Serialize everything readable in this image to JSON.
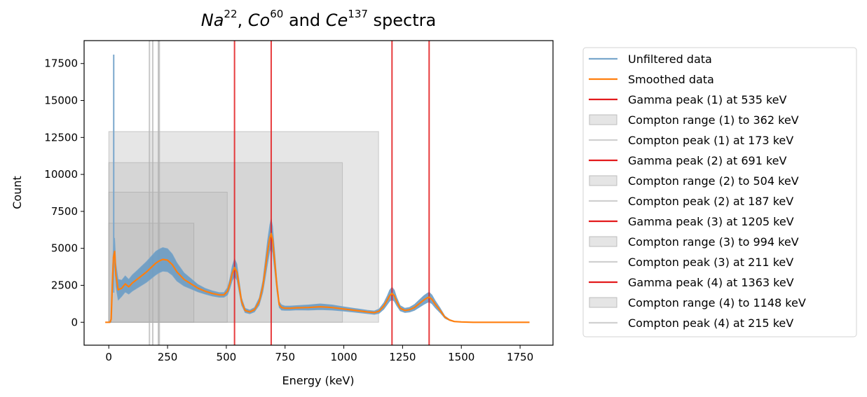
{
  "chart_data": {
    "type": "line",
    "title": {
      "el1": "Na",
      "sup1": "22",
      "sep1": ", ",
      "el2": "Co",
      "sup2": "60",
      "sep2": " and ",
      "el3": "Ce",
      "sup3": "137",
      "tail": " spectra"
    },
    "xlabel": "Energy (keV)",
    "ylabel": "Count",
    "xlim": [
      -105,
      1890
    ],
    "ylim": [
      -1550,
      19050
    ],
    "xticks": [
      0,
      250,
      500,
      750,
      1000,
      1250,
      1500,
      1750
    ],
    "yticks": [
      0,
      2500,
      5000,
      7500,
      10000,
      12500,
      15000,
      17500
    ],
    "grid": false,
    "legend_position": "outside-right",
    "colors": {
      "unfiltered": "#7aa7cc",
      "unfiltered_band": "#6a9bc3",
      "smoothed": "#ff7f0e",
      "gamma": "#e31a1c",
      "compton_range": "#bdbdbd",
      "compton_peak": "#b0b0b0"
    },
    "series": [
      {
        "name": "Smoothed data",
        "x": [
          -15,
          5,
          10,
          15,
          20,
          25,
          30,
          40,
          55,
          70,
          85,
          100,
          120,
          140,
          160,
          180,
          200,
          215,
          230,
          250,
          270,
          290,
          320,
          350,
          380,
          410,
          440,
          470,
          490,
          505,
          515,
          525,
          535,
          545,
          555,
          565,
          580,
          600,
          620,
          640,
          655,
          665,
          675,
          685,
          691,
          697,
          705,
          715,
          725,
          735,
          750,
          770,
          800,
          850,
          900,
          950,
          1000,
          1050,
          1100,
          1130,
          1150,
          1170,
          1185,
          1195,
          1205,
          1215,
          1225,
          1240,
          1260,
          1280,
          1300,
          1320,
          1340,
          1355,
          1363,
          1375,
          1390,
          1410,
          1430,
          1450,
          1470,
          1500,
          1550,
          1600,
          1650,
          1700,
          1750,
          1790
        ],
        "y": [
          0,
          0,
          200,
          2500,
          4400,
          4800,
          3200,
          2200,
          2300,
          2600,
          2400,
          2650,
          2900,
          3150,
          3400,
          3700,
          4000,
          4150,
          4250,
          4200,
          3900,
          3400,
          2900,
          2600,
          2300,
          2100,
          1950,
          1850,
          1850,
          2100,
          2600,
          3300,
          3700,
          3400,
          2400,
          1400,
          800,
          700,
          850,
          1400,
          2400,
          3500,
          4700,
          5700,
          6000,
          5600,
          4300,
          2500,
          1200,
          1000,
          950,
          950,
          980,
          1000,
          1050,
          1000,
          900,
          800,
          700,
          650,
          750,
          1100,
          1500,
          1800,
          1950,
          1800,
          1400,
          950,
          800,
          850,
          1000,
          1250,
          1500,
          1650,
          1700,
          1550,
          1200,
          800,
          350,
          150,
          50,
          20,
          0,
          0,
          0,
          0,
          0,
          0
        ]
      },
      {
        "name": "Unfiltered data",
        "spike_x": 21,
        "spike_top": 18100,
        "noise_half_width": [
          0,
          0,
          200,
          700,
          1000,
          900,
          800,
          700,
          550,
          550,
          500,
          550,
          600,
          650,
          700,
          750,
          800,
          800,
          800,
          780,
          720,
          620,
          450,
          350,
          250,
          200,
          180,
          160,
          160,
          250,
          350,
          500,
          600,
          550,
          400,
          250,
          150,
          130,
          150,
          250,
          400,
          600,
          800,
          900,
          1000,
          900,
          700,
          400,
          200,
          180,
          150,
          150,
          150,
          180,
          200,
          180,
          150,
          130,
          120,
          120,
          150,
          220,
          300,
          380,
          420,
          380,
          280,
          180,
          150,
          160,
          200,
          250,
          300,
          320,
          330,
          300,
          240,
          160,
          80,
          40,
          20,
          10,
          0,
          0,
          0,
          0,
          0,
          0
        ]
      }
    ],
    "gamma_peaks": [
      535,
      691,
      1205,
      1363
    ],
    "compton_ranges": [
      {
        "x": [
          0,
          362
        ],
        "y": [
          0,
          6700
        ]
      },
      {
        "x": [
          0,
          504
        ],
        "y": [
          0,
          8800
        ]
      },
      {
        "x": [
          0,
          994
        ],
        "y": [
          0,
          10800
        ]
      },
      {
        "x": [
          0,
          1148
        ],
        "y": [
          0,
          12900
        ]
      }
    ],
    "compton_peaks": [
      173,
      187,
      211,
      215
    ],
    "legend": [
      {
        "label": "Unfiltered data",
        "kind": "line",
        "color": "#7aa7cc"
      },
      {
        "label": "Smoothed data",
        "kind": "line",
        "color": "#ff7f0e"
      },
      {
        "label": "Gamma peak (1) at 535 keV",
        "kind": "line",
        "color": "#e31a1c"
      },
      {
        "label": "Compton range (1) to 362 keV",
        "kind": "patch",
        "color": "#e5e5e5"
      },
      {
        "label": "Compton peak (1) at 173 keV",
        "kind": "line",
        "color": "#d0d0d0"
      },
      {
        "label": "Gamma peak (2) at 691 keV",
        "kind": "line",
        "color": "#e31a1c"
      },
      {
        "label": "Compton range (2) to 504 keV",
        "kind": "patch",
        "color": "#e5e5e5"
      },
      {
        "label": "Compton peak (2) at 187 keV",
        "kind": "line",
        "color": "#d0d0d0"
      },
      {
        "label": "Gamma peak (3) at 1205 keV",
        "kind": "line",
        "color": "#e31a1c"
      },
      {
        "label": "Compton range (3) to 994 keV",
        "kind": "patch",
        "color": "#e5e5e5"
      },
      {
        "label": "Compton peak (3) at 211 keV",
        "kind": "line",
        "color": "#d0d0d0"
      },
      {
        "label": "Gamma peak (4) at 1363 keV",
        "kind": "line",
        "color": "#e31a1c"
      },
      {
        "label": "Compton range (4) to 1148 keV",
        "kind": "patch",
        "color": "#e5e5e5"
      },
      {
        "label": "Compton peak (4) at 215 keV",
        "kind": "line",
        "color": "#d0d0d0"
      }
    ]
  }
}
